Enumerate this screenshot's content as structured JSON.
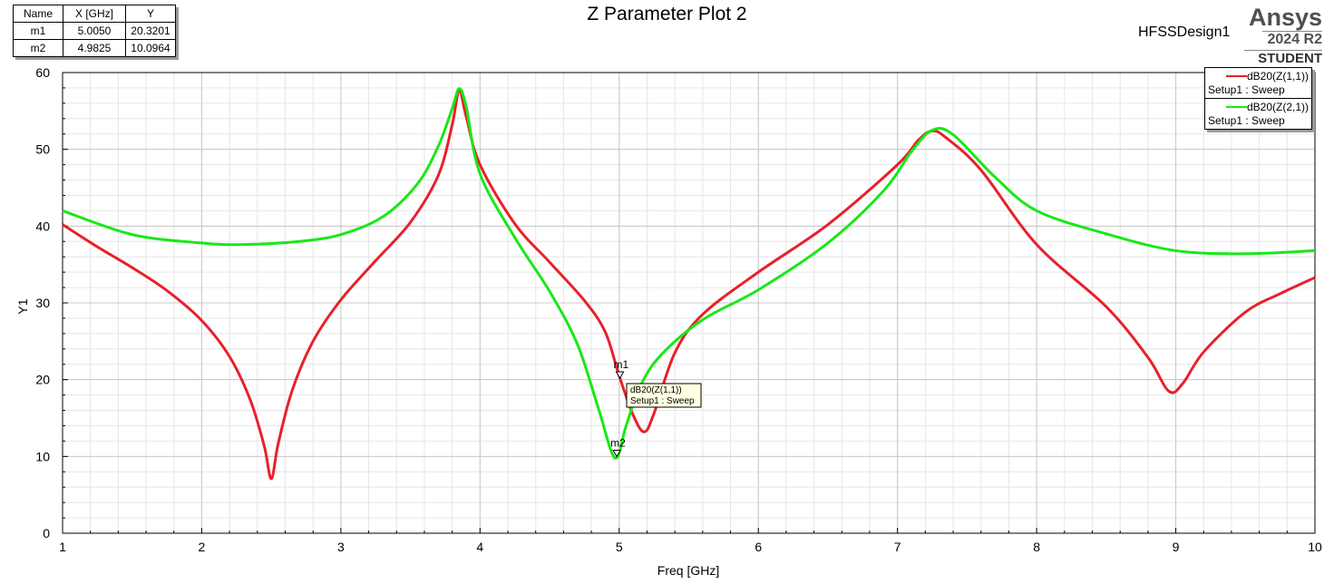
{
  "title": "Z Parameter Plot 2",
  "design_name": "HFSSDesign1",
  "brand": {
    "name": "Ansys",
    "version": "2024 R2",
    "edition": "STUDENT"
  },
  "marker_table": {
    "headers": [
      "Name",
      "X [GHz]",
      "Y"
    ],
    "rows": [
      {
        "name": "m1",
        "x": "5.0050",
        "y": "20.3201"
      },
      {
        "name": "m2",
        "x": "4.9825",
        "y": "10.0964"
      }
    ]
  },
  "legend": [
    {
      "trace": "dB20(Z(1,1))",
      "setup": "Setup1 : Sweep",
      "color": "#e8202a"
    },
    {
      "trace": "dB20(Z(2,1))",
      "setup": "Setup1 : Sweep",
      "color": "#18e818"
    }
  ],
  "tooltip": {
    "trace": "dB20(Z(1,1))",
    "setup": "Setup1 : Sweep"
  },
  "chart_data": {
    "type": "line",
    "xlabel": "Freq [GHz]",
    "ylabel": "Y1",
    "xlim": [
      1,
      10
    ],
    "ylim": [
      0,
      60
    ],
    "xticks": [
      "1",
      "2",
      "3",
      "4",
      "5",
      "6",
      "7",
      "8",
      "9",
      "10"
    ],
    "yticks": [
      "0",
      "10",
      "20",
      "30",
      "40",
      "50",
      "60"
    ],
    "grid": true,
    "legend_position": "top-right",
    "series": [
      {
        "name": "dB20(Z(1,1))",
        "color": "#e8202a",
        "x": [
          1,
          1.25,
          1.5,
          1.75,
          2,
          2.2,
          2.35,
          2.45,
          2.5,
          2.55,
          2.65,
          2.8,
          3,
          3.25,
          3.5,
          3.7,
          3.8,
          3.85,
          3.9,
          4,
          4.25,
          4.5,
          4.75,
          4.9,
          5,
          5.1,
          5.18,
          5.25,
          5.4,
          5.6,
          6,
          6.5,
          7,
          7.15,
          7.25,
          7.35,
          7.6,
          8,
          8.5,
          8.8,
          8.95,
          9.05,
          9.2,
          9.5,
          9.75,
          10
        ],
        "y": [
          40.2,
          37.3,
          34.6,
          31.6,
          27.7,
          23,
          17.3,
          11.3,
          7.1,
          11.7,
          18.6,
          25,
          30.4,
          35.5,
          40.5,
          46.6,
          53.2,
          57.7,
          54.3,
          48,
          40.3,
          35.3,
          30.3,
          26.2,
          20.5,
          15.4,
          13.2,
          15.6,
          23.5,
          28.5,
          34,
          40.2,
          48,
          51.2,
          52.4,
          51.5,
          47.3,
          37.6,
          29.5,
          22.9,
          18.5,
          19.5,
          23.6,
          28.8,
          31.2,
          33.3
        ]
      },
      {
        "name": "dB20(Z(2,1))",
        "color": "#18e818",
        "x": [
          1,
          1.5,
          2,
          2.3,
          2.7,
          3,
          3.3,
          3.55,
          3.7,
          3.8,
          3.85,
          3.9,
          4,
          4.25,
          4.5,
          4.7,
          4.85,
          4.97,
          5.05,
          5.15,
          5.3,
          5.6,
          6,
          6.5,
          6.9,
          7.1,
          7.25,
          7.4,
          7.7,
          8,
          8.5,
          9,
          9.5,
          10
        ],
        "y": [
          42,
          38.9,
          37.8,
          37.6,
          38,
          38.9,
          41.2,
          45.5,
          50.4,
          55.3,
          57.9,
          55.6,
          46.8,
          38.5,
          31.5,
          24.6,
          16.3,
          9.8,
          14,
          19.1,
          23.2,
          27.8,
          31.7,
          37.8,
          44.6,
          49.7,
          52.5,
          51.9,
          46.4,
          42,
          39,
          36.8,
          36.4,
          36.8
        ]
      }
    ],
    "markers": [
      {
        "name": "m1",
        "x": 5.005,
        "y": 20.3201
      },
      {
        "name": "m2",
        "x": 4.9825,
        "y": 10.0964
      }
    ]
  }
}
